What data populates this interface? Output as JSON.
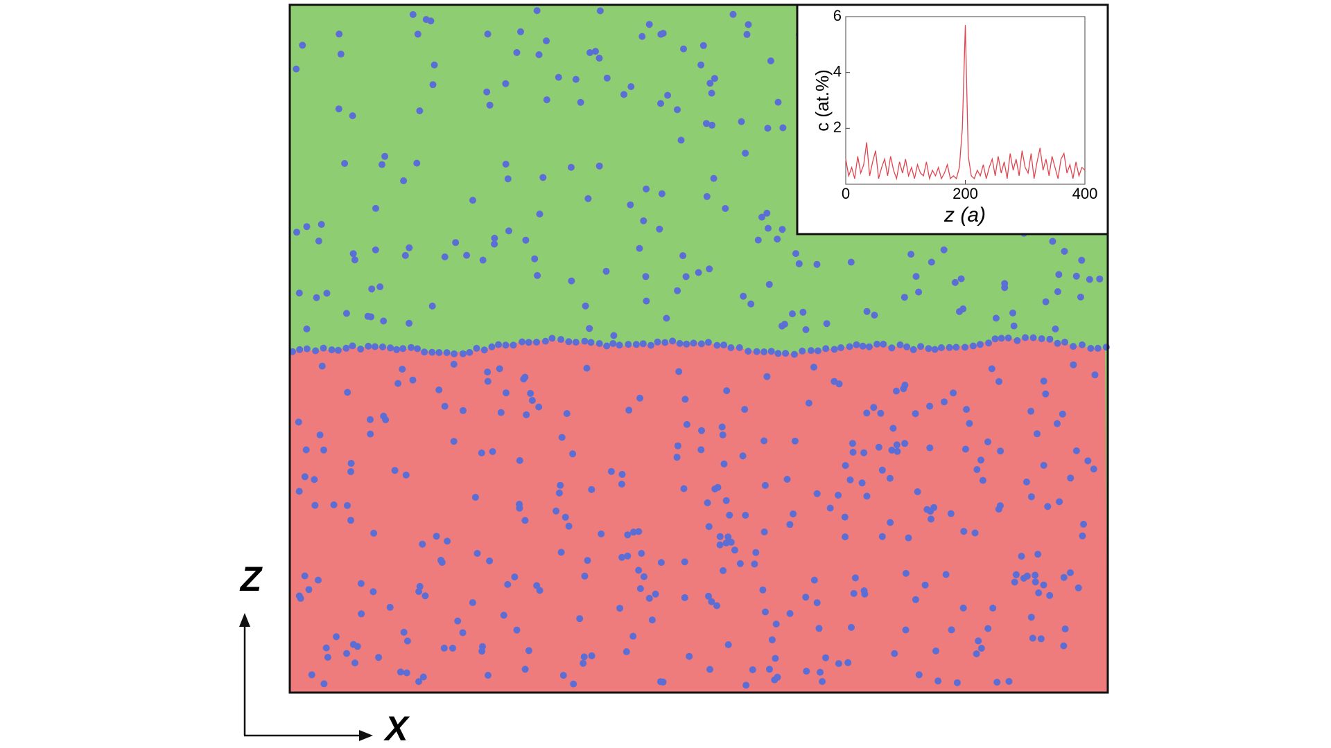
{
  "chart_data": {
    "type": "line",
    "xlabel": "z  (a)",
    "ylabel": "c  (at.%)",
    "xlim": [
      0,
      400
    ],
    "ylim": [
      0,
      6
    ],
    "xticks": [
      0,
      200,
      400
    ],
    "yticks": [
      2,
      4,
      6
    ],
    "color": "#e0454f",
    "x": [
      0,
      5,
      10,
      15,
      20,
      25,
      30,
      35,
      40,
      45,
      50,
      55,
      60,
      65,
      70,
      75,
      80,
      85,
      90,
      95,
      100,
      105,
      110,
      115,
      120,
      125,
      130,
      135,
      140,
      145,
      150,
      155,
      160,
      165,
      170,
      175,
      180,
      185,
      190,
      195,
      200,
      205,
      210,
      215,
      220,
      225,
      230,
      235,
      240,
      245,
      250,
      255,
      260,
      265,
      270,
      275,
      280,
      285,
      290,
      295,
      300,
      305,
      310,
      315,
      320,
      325,
      330,
      335,
      340,
      345,
      350,
      355,
      360,
      365,
      370,
      375,
      380,
      385,
      390,
      395,
      400
    ],
    "values": [
      0.9,
      0.3,
      0.6,
      0.2,
      1.0,
      0.4,
      0.7,
      1.5,
      0.3,
      0.8,
      1.2,
      0.2,
      0.6,
      0.9,
      0.3,
      1.0,
      0.5,
      0.2,
      0.8,
      0.4,
      0.9,
      0.3,
      0.6,
      0.2,
      0.7,
      0.4,
      0.3,
      0.8,
      0.2,
      0.5,
      0.3,
      0.6,
      0.2,
      0.4,
      0.7,
      0.2,
      0.3,
      0.2,
      0.6,
      2.0,
      5.7,
      1.0,
      0.3,
      0.2,
      0.5,
      0.3,
      0.7,
      0.2,
      0.6,
      0.9,
      0.3,
      1.0,
      0.4,
      0.8,
      0.2,
      1.1,
      0.5,
      0.9,
      0.3,
      1.2,
      0.6,
      0.4,
      1.1,
      0.2,
      0.8,
      1.3,
      0.5,
      0.9,
      0.3,
      1.0,
      0.6,
      0.2,
      0.9,
      1.1,
      0.4,
      0.7,
      0.2,
      0.8,
      0.3,
      0.6,
      0.5
    ],
    "annotations": {
      "vertical_axis": "Z",
      "horizontal_axis": "X"
    }
  }
}
